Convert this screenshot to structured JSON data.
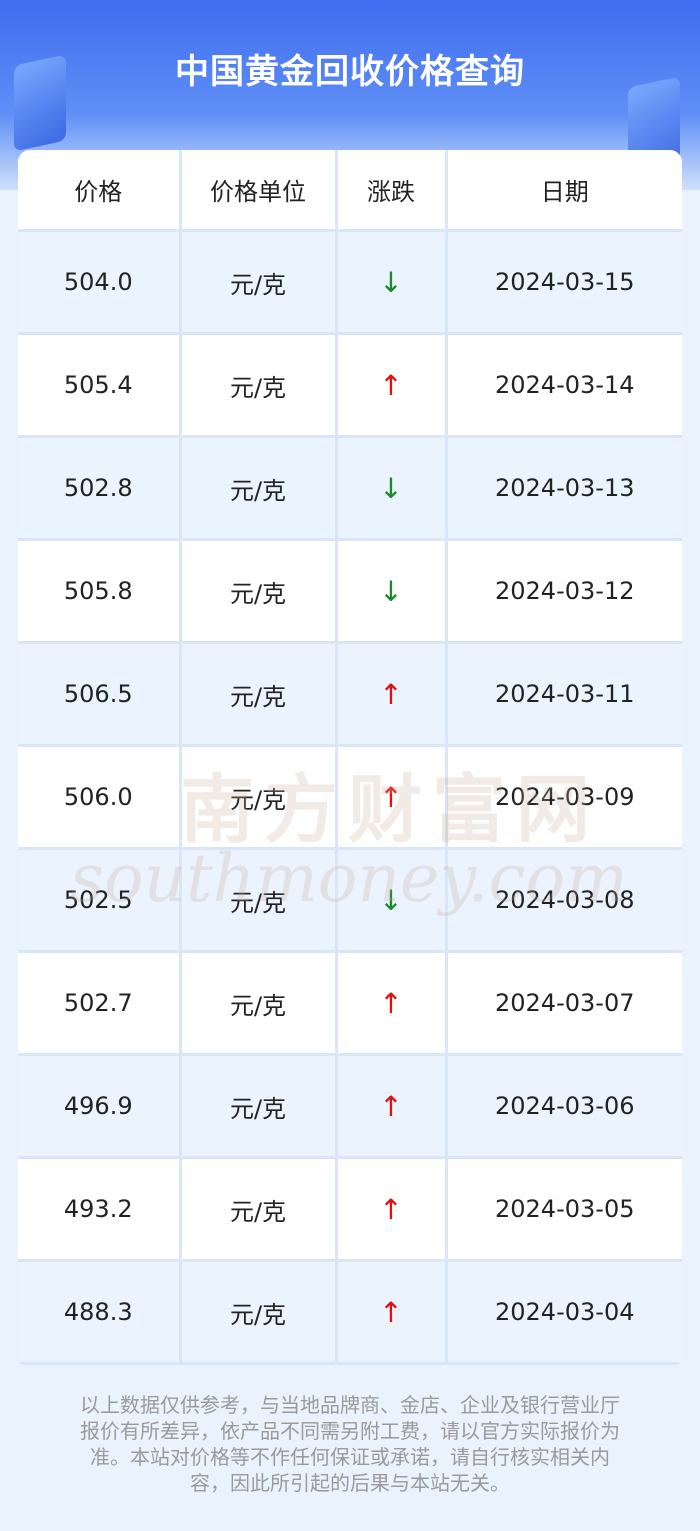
{
  "header": {
    "title": "中国黄金回收价格查询"
  },
  "table": {
    "columns": [
      "价格",
      "价格单位",
      "涨跌",
      "日期"
    ],
    "rows": [
      {
        "price": "504.0",
        "unit": "元/克",
        "change": "↓",
        "color": "#1a8a2a",
        "date": "2024-03-15"
      },
      {
        "price": "505.4",
        "unit": "元/克",
        "change": "↑",
        "color": "#e01010",
        "date": "2024-03-14"
      },
      {
        "price": "502.8",
        "unit": "元/克",
        "change": "↓",
        "color": "#1a8a2a",
        "date": "2024-03-13"
      },
      {
        "price": "505.8",
        "unit": "元/克",
        "change": "↓",
        "color": "#1a8a2a",
        "date": "2024-03-12"
      },
      {
        "price": "506.5",
        "unit": "元/克",
        "change": "↑",
        "color": "#e01010",
        "date": "2024-03-11"
      },
      {
        "price": "506.0",
        "unit": "元/克",
        "change": "↑",
        "color": "#e01010",
        "date": "2024-03-09"
      },
      {
        "price": "502.5",
        "unit": "元/克",
        "change": "↓",
        "color": "#1a8a2a",
        "date": "2024-03-08"
      },
      {
        "price": "502.7",
        "unit": "元/克",
        "change": "↑",
        "color": "#e01010",
        "date": "2024-03-07"
      },
      {
        "price": "496.9",
        "unit": "元/克",
        "change": "↑",
        "color": "#e01010",
        "date": "2024-03-06"
      },
      {
        "price": "493.2",
        "unit": "元/克",
        "change": "↑",
        "color": "#e01010",
        "date": "2024-03-05"
      },
      {
        "price": "488.3",
        "unit": "元/克",
        "change": "↑",
        "color": "#e01010",
        "date": "2024-03-04"
      }
    ]
  },
  "watermark": {
    "name": "南方财富网",
    "site": "southmoney.com"
  },
  "footer": {
    "note": "以上数据仅供参考，与当地品牌商、金店、企业及银行营业厅报价有所差异，依产品不同需另附工费，请以官方实际报价为准。本站对价格等不作任何保证或承诺，请自行核实相关内容，因此所引起的后果与本站无关。"
  }
}
